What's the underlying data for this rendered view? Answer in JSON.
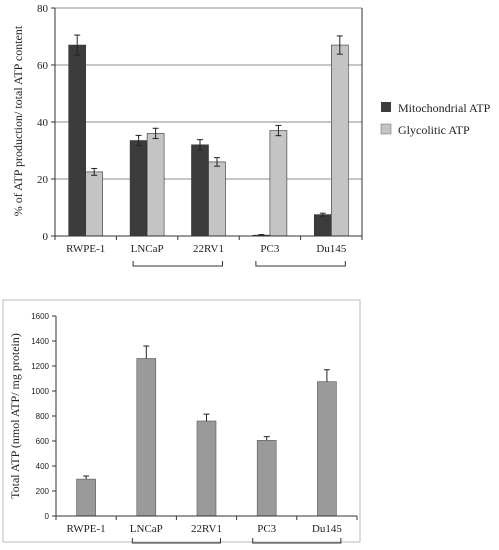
{
  "chart_data": [
    {
      "type": "bar",
      "ylabel": "% of ATP production/ total ATP content",
      "ylim": [
        0,
        80
      ],
      "yticks": [
        0,
        20,
        40,
        60,
        80
      ],
      "grid": true,
      "legend_position": "right",
      "categories": [
        "RWPE-1",
        "LNCaP",
        "22RV1",
        "PC3",
        "Du145"
      ],
      "series": [
        {
          "name": "Mitochondrial ATP",
          "color": "#3c3c3c",
          "values": [
            67,
            33.5,
            32,
            0.3,
            7.5
          ],
          "errors": [
            3.5,
            1.8,
            1.8,
            0.2,
            0.5
          ]
        },
        {
          "name": "Glycolitic ATP",
          "color": "#c4c4c4",
          "values": [
            22.5,
            36,
            26,
            37,
            67
          ],
          "errors": [
            1.2,
            1.8,
            1.5,
            1.8,
            3.2
          ]
        }
      ],
      "brackets": [
        [
          "LNCaP",
          "22RV1"
        ],
        [
          "PC3",
          "Du145"
        ]
      ]
    },
    {
      "type": "bar",
      "ylabel": "Total ATP (nmol ATP/ mg protein)",
      "ylim": [
        0,
        1600
      ],
      "yticks": [
        0,
        200,
        400,
        600,
        800,
        1000,
        1200,
        1400,
        1600
      ],
      "grid": false,
      "categories": [
        "RWPE-1",
        "LNCaP",
        "22RV1",
        "PC3",
        "Du145"
      ],
      "series": [
        {
          "color": "#9a9a9a",
          "values": [
            295,
            1260,
            760,
            605,
            1075
          ],
          "errors": [
            25,
            100,
            55,
            30,
            95
          ]
        }
      ],
      "brackets": [
        [
          "LNCaP",
          "22RV1"
        ],
        [
          "PC3",
          "Du145"
        ]
      ]
    }
  ]
}
